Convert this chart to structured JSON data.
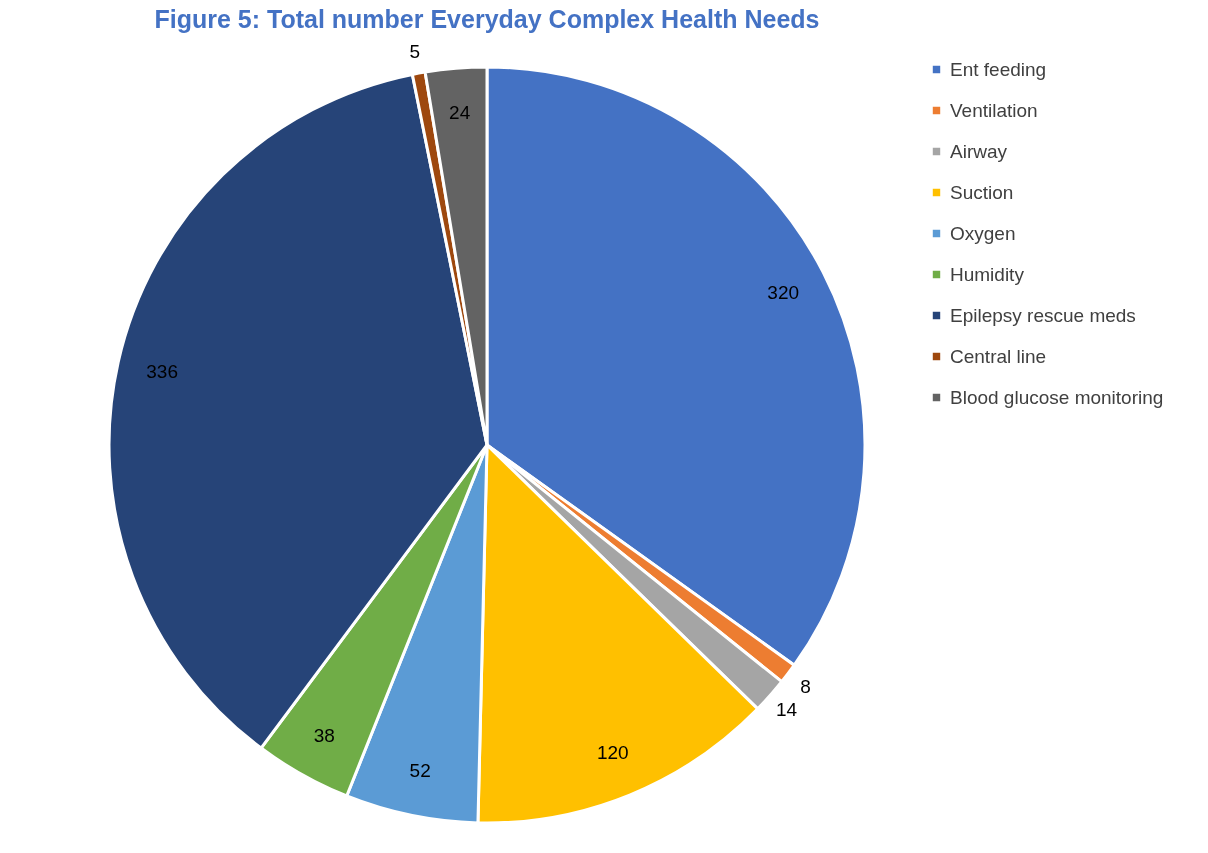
{
  "chart_data": {
    "type": "pie",
    "title": "Figure 5: Total number Everyday Complex Health Needs",
    "categories": [
      "Ent feeding",
      "Ventilation",
      "Airway",
      "Suction",
      "Oxygen",
      "Humidity",
      "Epilepsy rescue meds",
      "Central line",
      "Blood glucose monitoring"
    ],
    "values": [
      320,
      8,
      14,
      120,
      52,
      38,
      336,
      5,
      24
    ],
    "colors": [
      "#4472c4",
      "#ed7d31",
      "#a5a5a5",
      "#ffc000",
      "#5b9bd5",
      "#70ad47",
      "#264478",
      "#9e480e",
      "#636363"
    ],
    "data_labels": true,
    "legend": "right"
  }
}
